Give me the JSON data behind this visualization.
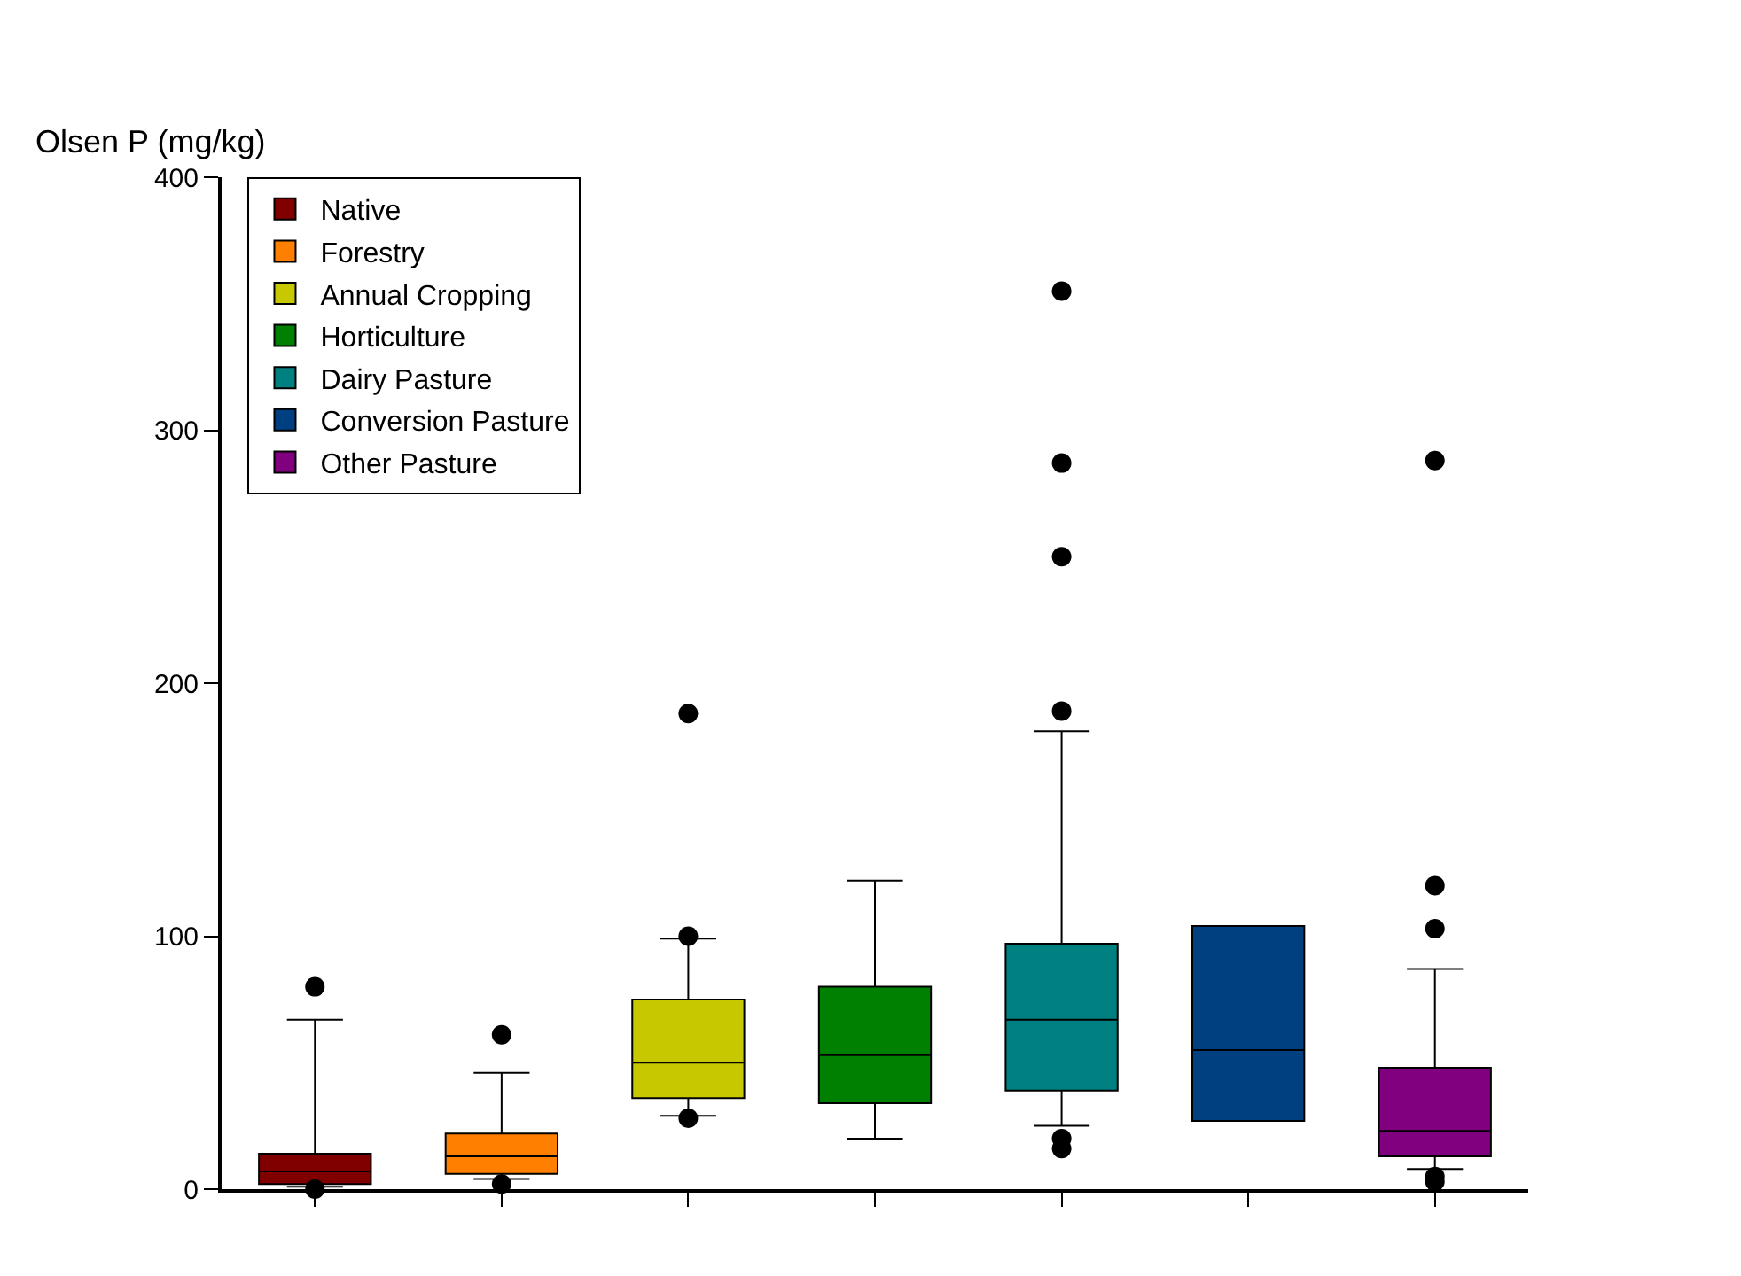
{
  "chart_data": {
    "type": "box",
    "ylabel": "Olsen P (mg/kg)",
    "categories": [
      null,
      null,
      null,
      null,
      null,
      null,
      null
    ],
    "ylim": [
      0,
      400
    ],
    "yticks": [
      0,
      100,
      200,
      300,
      400
    ],
    "grid": false,
    "legend": "top left",
    "marker": "circle",
    "series": [
      {
        "name": "Native",
        "color": "#800000",
        "boxes": [
          {
            "low": 1,
            "q1": 2,
            "median": 7,
            "q3": 14,
            "high": 67,
            "outliers": [
              0,
              80
            ]
          },
          null,
          null,
          null,
          null,
          null,
          null
        ]
      },
      {
        "name": "Forestry",
        "color": "#ff8000",
        "boxes": [
          null,
          {
            "low": 4,
            "q1": 6,
            "median": 13,
            "q3": 22,
            "high": 46,
            "outliers": [
              2,
              61
            ]
          },
          null,
          null,
          null,
          null,
          null
        ]
      },
      {
        "name": "Annual Cropping",
        "color": "#c8c800",
        "boxes": [
          null,
          null,
          {
            "low": 29,
            "q1": 36,
            "median": 50,
            "q3": 75,
            "high": 99,
            "outliers": [
              28,
              100,
              188
            ]
          },
          null,
          null,
          null,
          null
        ]
      },
      {
        "name": "Horticulture",
        "color": "#008000",
        "boxes": [
          null,
          null,
          null,
          {
            "low": 20,
            "q1": 34,
            "median": 53,
            "q3": 80,
            "high": 122
          },
          null,
          null,
          null
        ]
      },
      {
        "name": "Dairy Pasture",
        "color": "#008080",
        "boxes": [
          null,
          null,
          null,
          null,
          {
            "low": 25,
            "q1": 39,
            "median": 67,
            "q3": 97,
            "high": 181,
            "outliers": [
              16,
              20,
              189,
              250,
              287,
              355
            ]
          },
          null,
          null
        ]
      },
      {
        "name": "Conversion Pasture",
        "color": "#004080",
        "boxes": [
          null,
          null,
          null,
          null,
          null,
          {
            "low": 27,
            "q1": 27,
            "median": 55,
            "q3": 104,
            "high": 104
          },
          null
        ]
      },
      {
        "name": "Other Pasture",
        "color": "#800080",
        "boxes": [
          null,
          null,
          null,
          null,
          null,
          null,
          {
            "low": 8,
            "q1": 13,
            "median": 23,
            "q3": 48,
            "high": 87,
            "outliers": [
              3,
              5,
              103,
              120,
              288
            ]
          }
        ]
      }
    ]
  }
}
